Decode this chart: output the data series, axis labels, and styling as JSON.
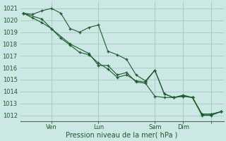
{
  "title": "Pression niveau de la mer( hPa )",
  "bg_color": "#cce8e4",
  "grid_color": "#aaccc8",
  "line_color": "#1a5c2a",
  "sep_color": "#cc9999",
  "ylim": [
    1011.5,
    1021.5
  ],
  "yticks": [
    1012,
    1013,
    1014,
    1015,
    1016,
    1017,
    1018,
    1019,
    1020,
    1021
  ],
  "series1_x": [
    0,
    1,
    2,
    3,
    4,
    5,
    6,
    7,
    8,
    9,
    10,
    11,
    12,
    13,
    14,
    15,
    16,
    17,
    18,
    19,
    20,
    21
  ],
  "series1_y": [
    1020.6,
    1020.5,
    1020.8,
    1021.0,
    1020.6,
    1019.3,
    1019.0,
    1019.4,
    1019.6,
    1017.4,
    1017.1,
    1016.7,
    1015.4,
    1014.9,
    1015.8,
    1013.8,
    1013.5,
    1013.6,
    1013.5,
    1012.1,
    1012.1,
    1012.3
  ],
  "series2_x": [
    0,
    1,
    2,
    3,
    4,
    5,
    6,
    7,
    8,
    9,
    10,
    11,
    12,
    13,
    14,
    15,
    16,
    17,
    18,
    19,
    20,
    21
  ],
  "series2_y": [
    1020.6,
    1020.2,
    1019.8,
    1019.3,
    1018.5,
    1017.9,
    1017.3,
    1017.1,
    1016.4,
    1015.9,
    1015.2,
    1015.4,
    1014.9,
    1014.8,
    1015.8,
    1013.8,
    1013.5,
    1013.6,
    1013.5,
    1012.1,
    1012.1,
    1012.3
  ],
  "series3_x": [
    0,
    2,
    3,
    5,
    7,
    8,
    9,
    10,
    11,
    12,
    13,
    14,
    15,
    16,
    17,
    18,
    19,
    20,
    21
  ],
  "series3_y": [
    1020.6,
    1020.1,
    1019.3,
    1018.0,
    1017.2,
    1016.2,
    1016.2,
    1015.4,
    1015.6,
    1014.8,
    1014.7,
    1013.6,
    1013.5,
    1013.5,
    1013.7,
    1013.5,
    1012.0,
    1012.0,
    1012.3
  ],
  "xtick_positions": [
    3,
    8,
    14,
    17,
    20
  ],
  "xtick_labels": [
    "Ven",
    "Lun",
    "Sam",
    "Dim",
    ""
  ],
  "vline_positions": [
    3,
    8,
    14,
    17,
    20
  ],
  "xlim": [
    -0.3,
    21.3
  ],
  "ylabel_fontsize": 6,
  "xlabel_fontsize": 7,
  "tick_fontsize": 6
}
